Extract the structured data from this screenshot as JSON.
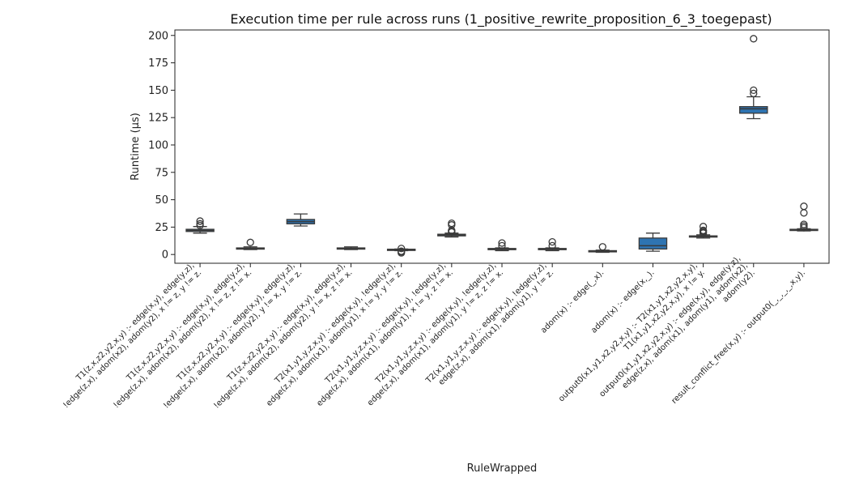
{
  "chart_data": {
    "type": "box",
    "title": "Execution time per rule across runs (1_positive_rewrite_proposition_6_3_toegepast)",
    "xlabel": "RuleWrapped",
    "ylabel": "Runtime (µs)",
    "ylim": [
      -8,
      205
    ],
    "yticks": [
      0,
      25,
      50,
      75,
      100,
      125,
      150,
      175,
      200
    ],
    "grid": false,
    "box_color": "#2e74b2",
    "line_color": "#3a3a3a",
    "categories": [
      [
        "T1(z,x,z2,y2,x,y) :-    edge(x,y),    edge(y,z),",
        "!edge(z,x),    adom(x2),    adom(y2),    x != z,    y != z."
      ],
      [
        "T1(z,x,z2,y2,x,y) :-    edge(x,y),    edge(y,z),",
        "!edge(z,x),    adom(x2),    adom(y2),    x != z,    z != x."
      ],
      [
        "T1(z,x,z2,y2,x,y) :-    edge(x,y),    edge(y,z),",
        "!edge(z,x),    adom(x2),    adom(y2),    y != x,    y != z."
      ],
      [
        "T1(z,x,z2,y2,x,y) :-    edge(x,y),    edge(y,z),",
        "!edge(z,x),    adom(x2),    adom(y2),    y != x,    z != x."
      ],
      [
        "T2(x1,y1,y,z,x,y) :-    edge(x,y),    !edge(y,z),",
        "edge(z,x),    adom(x1),    adom(y1),    x != y,    y != z."
      ],
      [
        "T2(x1,y1,y,z,x,y) :-    edge(x,y),    !edge(y,z),",
        "edge(z,x),    adom(x1),    adom(y1),    x != y,    z != x."
      ],
      [
        "T2(x1,y1,y,z,x,y) :-    edge(x,y),    !edge(y,z),",
        "edge(z,x),    adom(x1),    adom(y1),    y != z,    z != x."
      ],
      [
        "T2(x1,y1,y,z,x,y) :-    edge(x,y),    !edge(y,z),",
        "edge(z,x),    adom(x1),    adom(y1),    y != z."
      ],
      [
        "adom(x) :-    edge(_,x)."
      ],
      [
        "adom(x) :-    edge(x,_)."
      ],
      [
        "output0(x1,y1,x2,y2,x,y) :-    T2(x1,y1,x2,y2,x,y),",
        "T1(x1,y1,x2,y2,x,y),    x != y."
      ],
      [
        "output0(x1,y1,x2,y2,x,y) :-    edge(x,y),    edge(y,z),",
        "edge(z,x),    adom(x1),    adom(y1),    adom(x2),",
        "adom(y2)."
      ],
      [
        "result_conflict_free(x,y) :-    output0(_,_,_,_,x,y)."
      ]
    ],
    "boxes": [
      {
        "whislo": 19.5,
        "q1": 21,
        "med": 22,
        "q3": 23,
        "whishi": 25.5,
        "fliers": [
          26.5,
          28,
          30.5
        ]
      },
      {
        "whislo": 4.5,
        "q1": 5,
        "med": 5.5,
        "q3": 6,
        "whishi": 7,
        "fliers": [
          11
        ]
      },
      {
        "whislo": 26,
        "q1": 28,
        "med": 30,
        "q3": 32,
        "whishi": 37,
        "fliers": []
      },
      {
        "whislo": 4.5,
        "q1": 5,
        "med": 5.5,
        "q3": 6,
        "whishi": 7,
        "fliers": []
      },
      {
        "whislo": 3.5,
        "q1": 4,
        "med": 4.5,
        "q3": 4.8,
        "whishi": 5,
        "fliers": [
          1.5,
          2.5,
          3,
          5.5
        ]
      },
      {
        "whislo": 16,
        "q1": 17,
        "med": 18,
        "q3": 18.5,
        "whishi": 19.5,
        "fliers": [
          20.5,
          21.5,
          22,
          27,
          28.5
        ]
      },
      {
        "whislo": 3.5,
        "q1": 4.5,
        "med": 5,
        "q3": 5.5,
        "whishi": 6,
        "fliers": [
          8,
          10.5
        ]
      },
      {
        "whislo": 3.5,
        "q1": 4.5,
        "med": 5,
        "q3": 5.5,
        "whishi": 6,
        "fliers": [
          8,
          11.5
        ]
      },
      {
        "whislo": 2,
        "q1": 2.5,
        "med": 3,
        "q3": 3.5,
        "whishi": 4,
        "fliers": [
          7
        ]
      },
      {
        "whislo": 3,
        "q1": 5,
        "med": 8,
        "q3": 15,
        "whishi": 19.5,
        "fliers": []
      },
      {
        "whislo": 15,
        "q1": 16,
        "med": 16.5,
        "q3": 17,
        "whishi": 18,
        "fliers": [
          19.5,
          20.5,
          21.5,
          22,
          25.5
        ]
      },
      {
        "whislo": 124,
        "q1": 129,
        "med": 133,
        "q3": 135,
        "whishi": 144,
        "fliers": [
          147,
          150,
          197
        ]
      },
      {
        "whislo": 21.5,
        "q1": 22,
        "med": 22.5,
        "q3": 23,
        "whishi": 23.5,
        "fliers": [
          24.5,
          26,
          27.5,
          38,
          44
        ]
      }
    ]
  }
}
